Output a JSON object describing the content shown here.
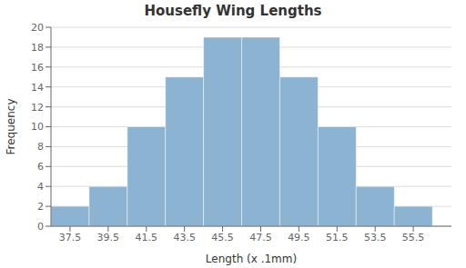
{
  "chart_data": {
    "type": "bar",
    "title": "Housefly Wing Lengths",
    "xlabel": "Length (x .1mm)",
    "ylabel": "Frequency",
    "x": [
      37.5,
      39.5,
      41.5,
      43.5,
      45.5,
      47.5,
      49.5,
      51.5,
      53.5,
      55.5
    ],
    "values": [
      2,
      4,
      10,
      15,
      19,
      19,
      15,
      10,
      4,
      2
    ],
    "color": "#8cb4d2",
    "xlim": [
      36.5,
      57.5
    ],
    "xticks": [
      37.5,
      39.5,
      41.5,
      43.5,
      45.5,
      47.5,
      49.5,
      51.5,
      53.5,
      55.5
    ],
    "ylim": [
      0,
      20
    ],
    "yticks": [
      0,
      2,
      4,
      6,
      8,
      10,
      12,
      14,
      16,
      18,
      20
    ],
    "grid": true
  }
}
